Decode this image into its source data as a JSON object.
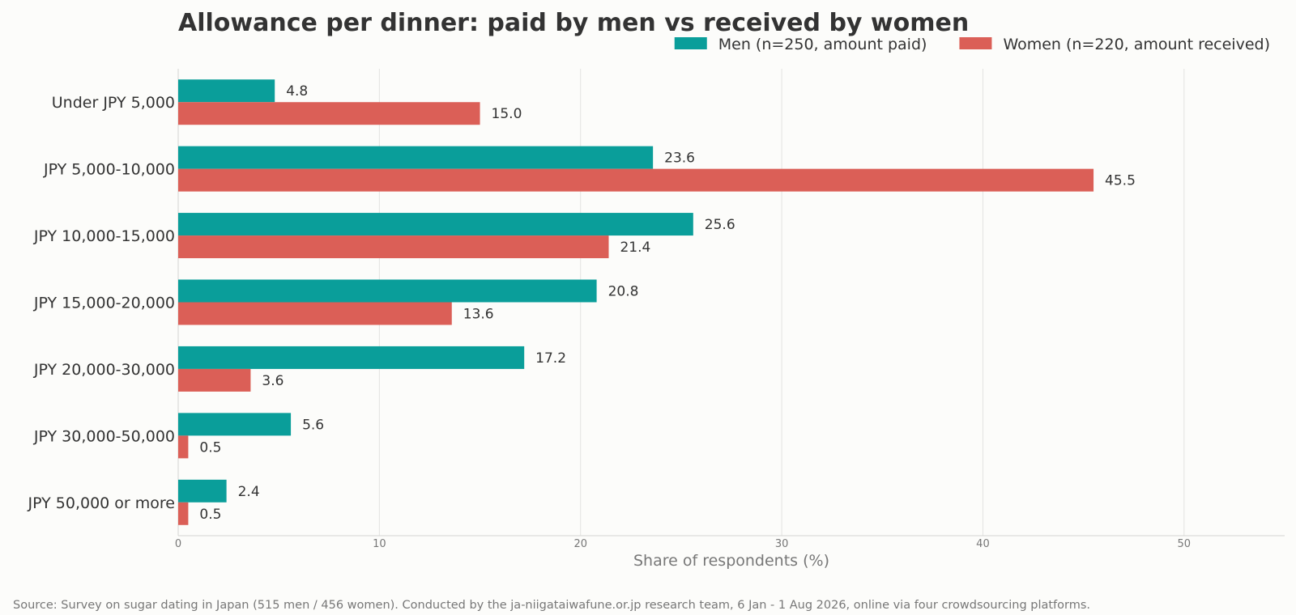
{
  "chart_data": {
    "type": "bar",
    "orientation": "horizontal",
    "title": "Allowance per dinner: paid by men vs received by women",
    "xlabel": "Share of respondents (%)",
    "ylabel": "",
    "xlim": [
      0,
      55
    ],
    "xticks": [
      0,
      10,
      20,
      30,
      40,
      50
    ],
    "grid": true,
    "legend_position": "top-right",
    "categories": [
      "Under JPY 5,000",
      "JPY 5,000-10,000",
      "JPY 10,000-15,000",
      "JPY 15,000-20,000",
      "JPY 20,000-30,000",
      "JPY 30,000-50,000",
      "JPY 50,000 or more"
    ],
    "series": [
      {
        "name": "Men (n=250, amount paid)",
        "color": "#0a9e9a",
        "values": [
          4.8,
          23.6,
          25.6,
          20.8,
          17.2,
          5.6,
          2.4
        ],
        "labels": [
          "4.8",
          "23.6",
          "25.6",
          "20.8",
          "17.2",
          "5.6",
          "2.4"
        ]
      },
      {
        "name": "Women (n=220, amount received)",
        "color": "#db5f57",
        "values": [
          15.0,
          45.5,
          21.4,
          13.6,
          3.6,
          0.5,
          0.5
        ],
        "labels": [
          "15.0",
          "45.5",
          "21.4",
          "13.6",
          "3.6",
          "0.5",
          "0.5"
        ]
      }
    ],
    "source": "Source: Survey on sugar dating in Japan (515 men / 456 women). Conducted by the ja-niigataiwafune.or.jp research team, 6 Jan - 1 Aug 2026, online via four crowdsourcing platforms."
  }
}
